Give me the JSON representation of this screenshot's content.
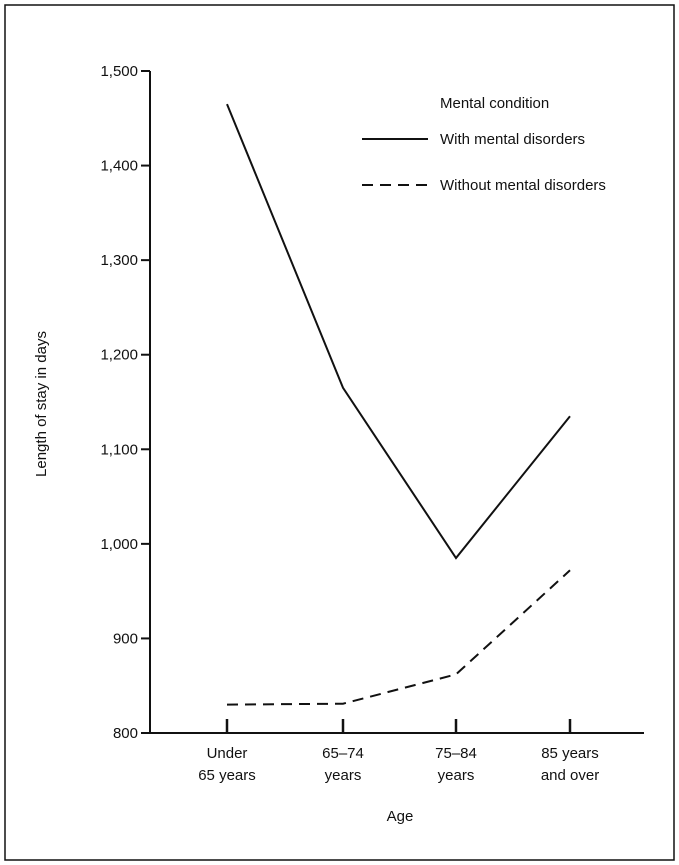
{
  "chart_data": {
    "type": "line",
    "title": "",
    "xlabel": "Age",
    "ylabel": "Length of stay in days",
    "categories": [
      [
        "Under",
        "65 years"
      ],
      [
        "65–74",
        "years"
      ],
      [
        "75–84",
        "years"
      ],
      [
        "85 years",
        "and over"
      ]
    ],
    "y_ticks": [
      800,
      900,
      1000,
      1100,
      1200,
      1300,
      1400,
      1500
    ],
    "y_tick_labels": [
      "800",
      "900",
      "1,000",
      "1,100",
      "1,200",
      "1,300",
      "1,400",
      "1,500"
    ],
    "ylim": [
      800,
      1500
    ],
    "grid": false,
    "legend": {
      "title": "Mental condition",
      "placement": "top-right"
    },
    "series": [
      {
        "name": "With mental disorders",
        "style": "solid",
        "color": "#111111",
        "values": [
          1465,
          1165,
          985,
          1135
        ]
      },
      {
        "name": "Without mental disorders",
        "style": "dashed",
        "color": "#111111",
        "values": [
          830,
          831,
          862,
          972
        ]
      }
    ]
  }
}
